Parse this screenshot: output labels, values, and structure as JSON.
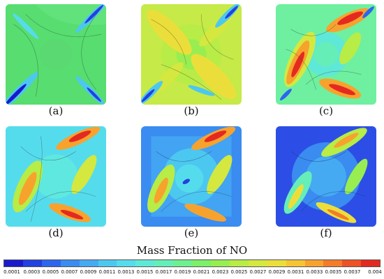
{
  "panels": [
    {
      "label": "(a)"
    },
    {
      "label": "(b)"
    },
    {
      "label": "(c)"
    },
    {
      "label": "(d)"
    },
    {
      "label": "(e)"
    },
    {
      "label": "(f)"
    }
  ],
  "colorbar": {
    "title": "Mass Fraction of NO",
    "ticks": [
      "0.0001",
      "0.0003",
      "0.0005",
      "0.0007",
      "0.0009",
      "0.0011",
      "0.0013",
      "0.0015",
      "0.0017",
      "0.0019",
      "0.0021",
      "0.0023",
      "0.0025",
      "0.0027",
      "0.0029",
      "0.0031",
      "0.0033",
      "0.0035",
      "0.0037",
      "0.004"
    ],
    "colors": [
      "#1a1acc",
      "#2340e0",
      "#2d66ee",
      "#3a8cf0",
      "#45aaf2",
      "#4cc8f0",
      "#55dcec",
      "#5ee8d8",
      "#66eeb8",
      "#6ef090",
      "#7cf068",
      "#98ee50",
      "#b8ec46",
      "#d4e840",
      "#ecde3a",
      "#f6c434",
      "#f8a22e",
      "#f47c28",
      "#ee5224",
      "#e42a20"
    ]
  }
}
